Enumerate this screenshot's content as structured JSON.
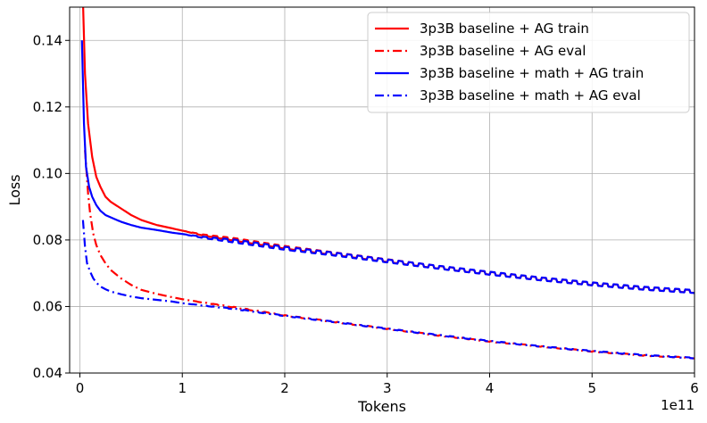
{
  "chart_data": {
    "type": "line",
    "xlabel": "Tokens",
    "ylabel": "Loss",
    "x_offset_label": "1e11",
    "x_scale": 100000000000.0,
    "xlim": [
      -0.1,
      6.0
    ],
    "ylim": [
      0.04,
      0.15
    ],
    "x_ticks": [
      0,
      1,
      2,
      3,
      4,
      5,
      6
    ],
    "x_tick_labels": [
      "0",
      "1",
      "2",
      "3",
      "4",
      "5",
      "6"
    ],
    "y_ticks": [
      0.04,
      0.06,
      0.08,
      0.1,
      0.12,
      0.14
    ],
    "y_tick_labels": [
      "0.04",
      "0.06",
      "0.08",
      "0.10",
      "0.12",
      "0.14"
    ],
    "grid": true,
    "legend_position": "top-right",
    "series": [
      {
        "name": "3p3B baseline + AG train",
        "color": "#ff0000",
        "style": "solid",
        "x": [
          0.03,
          0.05,
          0.08,
          0.12,
          0.16,
          0.2,
          0.25,
          0.3,
          0.4,
          0.5,
          0.6,
          0.75,
          0.9,
          1.0,
          1.2,
          1.5,
          2.0,
          2.5,
          3.0,
          3.5,
          4.0,
          4.5,
          5.0,
          5.5,
          6.0
        ],
        "y": [
          0.152,
          0.13,
          0.115,
          0.105,
          0.099,
          0.096,
          0.093,
          0.0915,
          0.0895,
          0.0875,
          0.086,
          0.0845,
          0.0835,
          0.0828,
          0.0815,
          0.0802,
          0.0778,
          0.0758,
          0.0738,
          0.0718,
          0.07,
          0.0683,
          0.0668,
          0.0655,
          0.0645
        ],
        "oscillation": 0.0008
      },
      {
        "name": "3p3B baseline + AG eval",
        "color": "#ff0000",
        "style": "dashdot",
        "x": [
          0.05,
          0.08,
          0.1,
          0.13,
          0.16,
          0.2,
          0.25,
          0.3,
          0.4,
          0.5,
          0.6,
          0.75,
          0.9,
          1.0,
          1.2,
          1.5,
          2.0,
          2.5,
          3.0,
          3.5,
          4.0,
          4.5,
          5.0,
          5.5,
          6.0
        ],
        "y": [
          0.107,
          0.094,
          0.088,
          0.082,
          0.0785,
          0.0755,
          0.073,
          0.071,
          0.0685,
          0.0665,
          0.065,
          0.0638,
          0.0628,
          0.0622,
          0.0612,
          0.0598,
          0.0573,
          0.0553,
          0.0533,
          0.0513,
          0.0495,
          0.048,
          0.0465,
          0.0453,
          0.0445
        ],
        "oscillation": 0.0002
      },
      {
        "name": "3p3B baseline + math + AG train",
        "color": "#0000ff",
        "style": "solid",
        "x": [
          0.02,
          0.04,
          0.06,
          0.09,
          0.12,
          0.16,
          0.2,
          0.25,
          0.3,
          0.4,
          0.5,
          0.6,
          0.75,
          0.9,
          1.0,
          1.2,
          1.5,
          2.0,
          2.5,
          3.0,
          3.5,
          4.0,
          4.5,
          5.0,
          5.5,
          6.0
        ],
        "y": [
          0.14,
          0.115,
          0.102,
          0.096,
          0.093,
          0.0905,
          0.0888,
          0.0875,
          0.0868,
          0.0855,
          0.0845,
          0.0837,
          0.083,
          0.0822,
          0.0818,
          0.0808,
          0.0797,
          0.0775,
          0.0757,
          0.0737,
          0.0718,
          0.07,
          0.0683,
          0.0668,
          0.0655,
          0.0645
        ],
        "oscillation": 0.0009
      },
      {
        "name": "3p3B baseline + math + AG eval",
        "color": "#0000ff",
        "style": "dashdot",
        "x": [
          0.03,
          0.05,
          0.07,
          0.1,
          0.13,
          0.16,
          0.2,
          0.25,
          0.3,
          0.4,
          0.5,
          0.6,
          0.75,
          0.9,
          1.0,
          1.2,
          1.5,
          2.0,
          2.5,
          3.0,
          3.5,
          4.0,
          4.5,
          5.0,
          5.5,
          6.0
        ],
        "y": [
          0.086,
          0.078,
          0.073,
          0.0705,
          0.0685,
          0.0672,
          0.066,
          0.0652,
          0.0645,
          0.0637,
          0.063,
          0.0625,
          0.062,
          0.0615,
          0.061,
          0.0603,
          0.0593,
          0.0572,
          0.0553,
          0.0533,
          0.0514,
          0.0496,
          0.048,
          0.0466,
          0.0454,
          0.0445
        ],
        "oscillation": 0.0002
      }
    ]
  }
}
